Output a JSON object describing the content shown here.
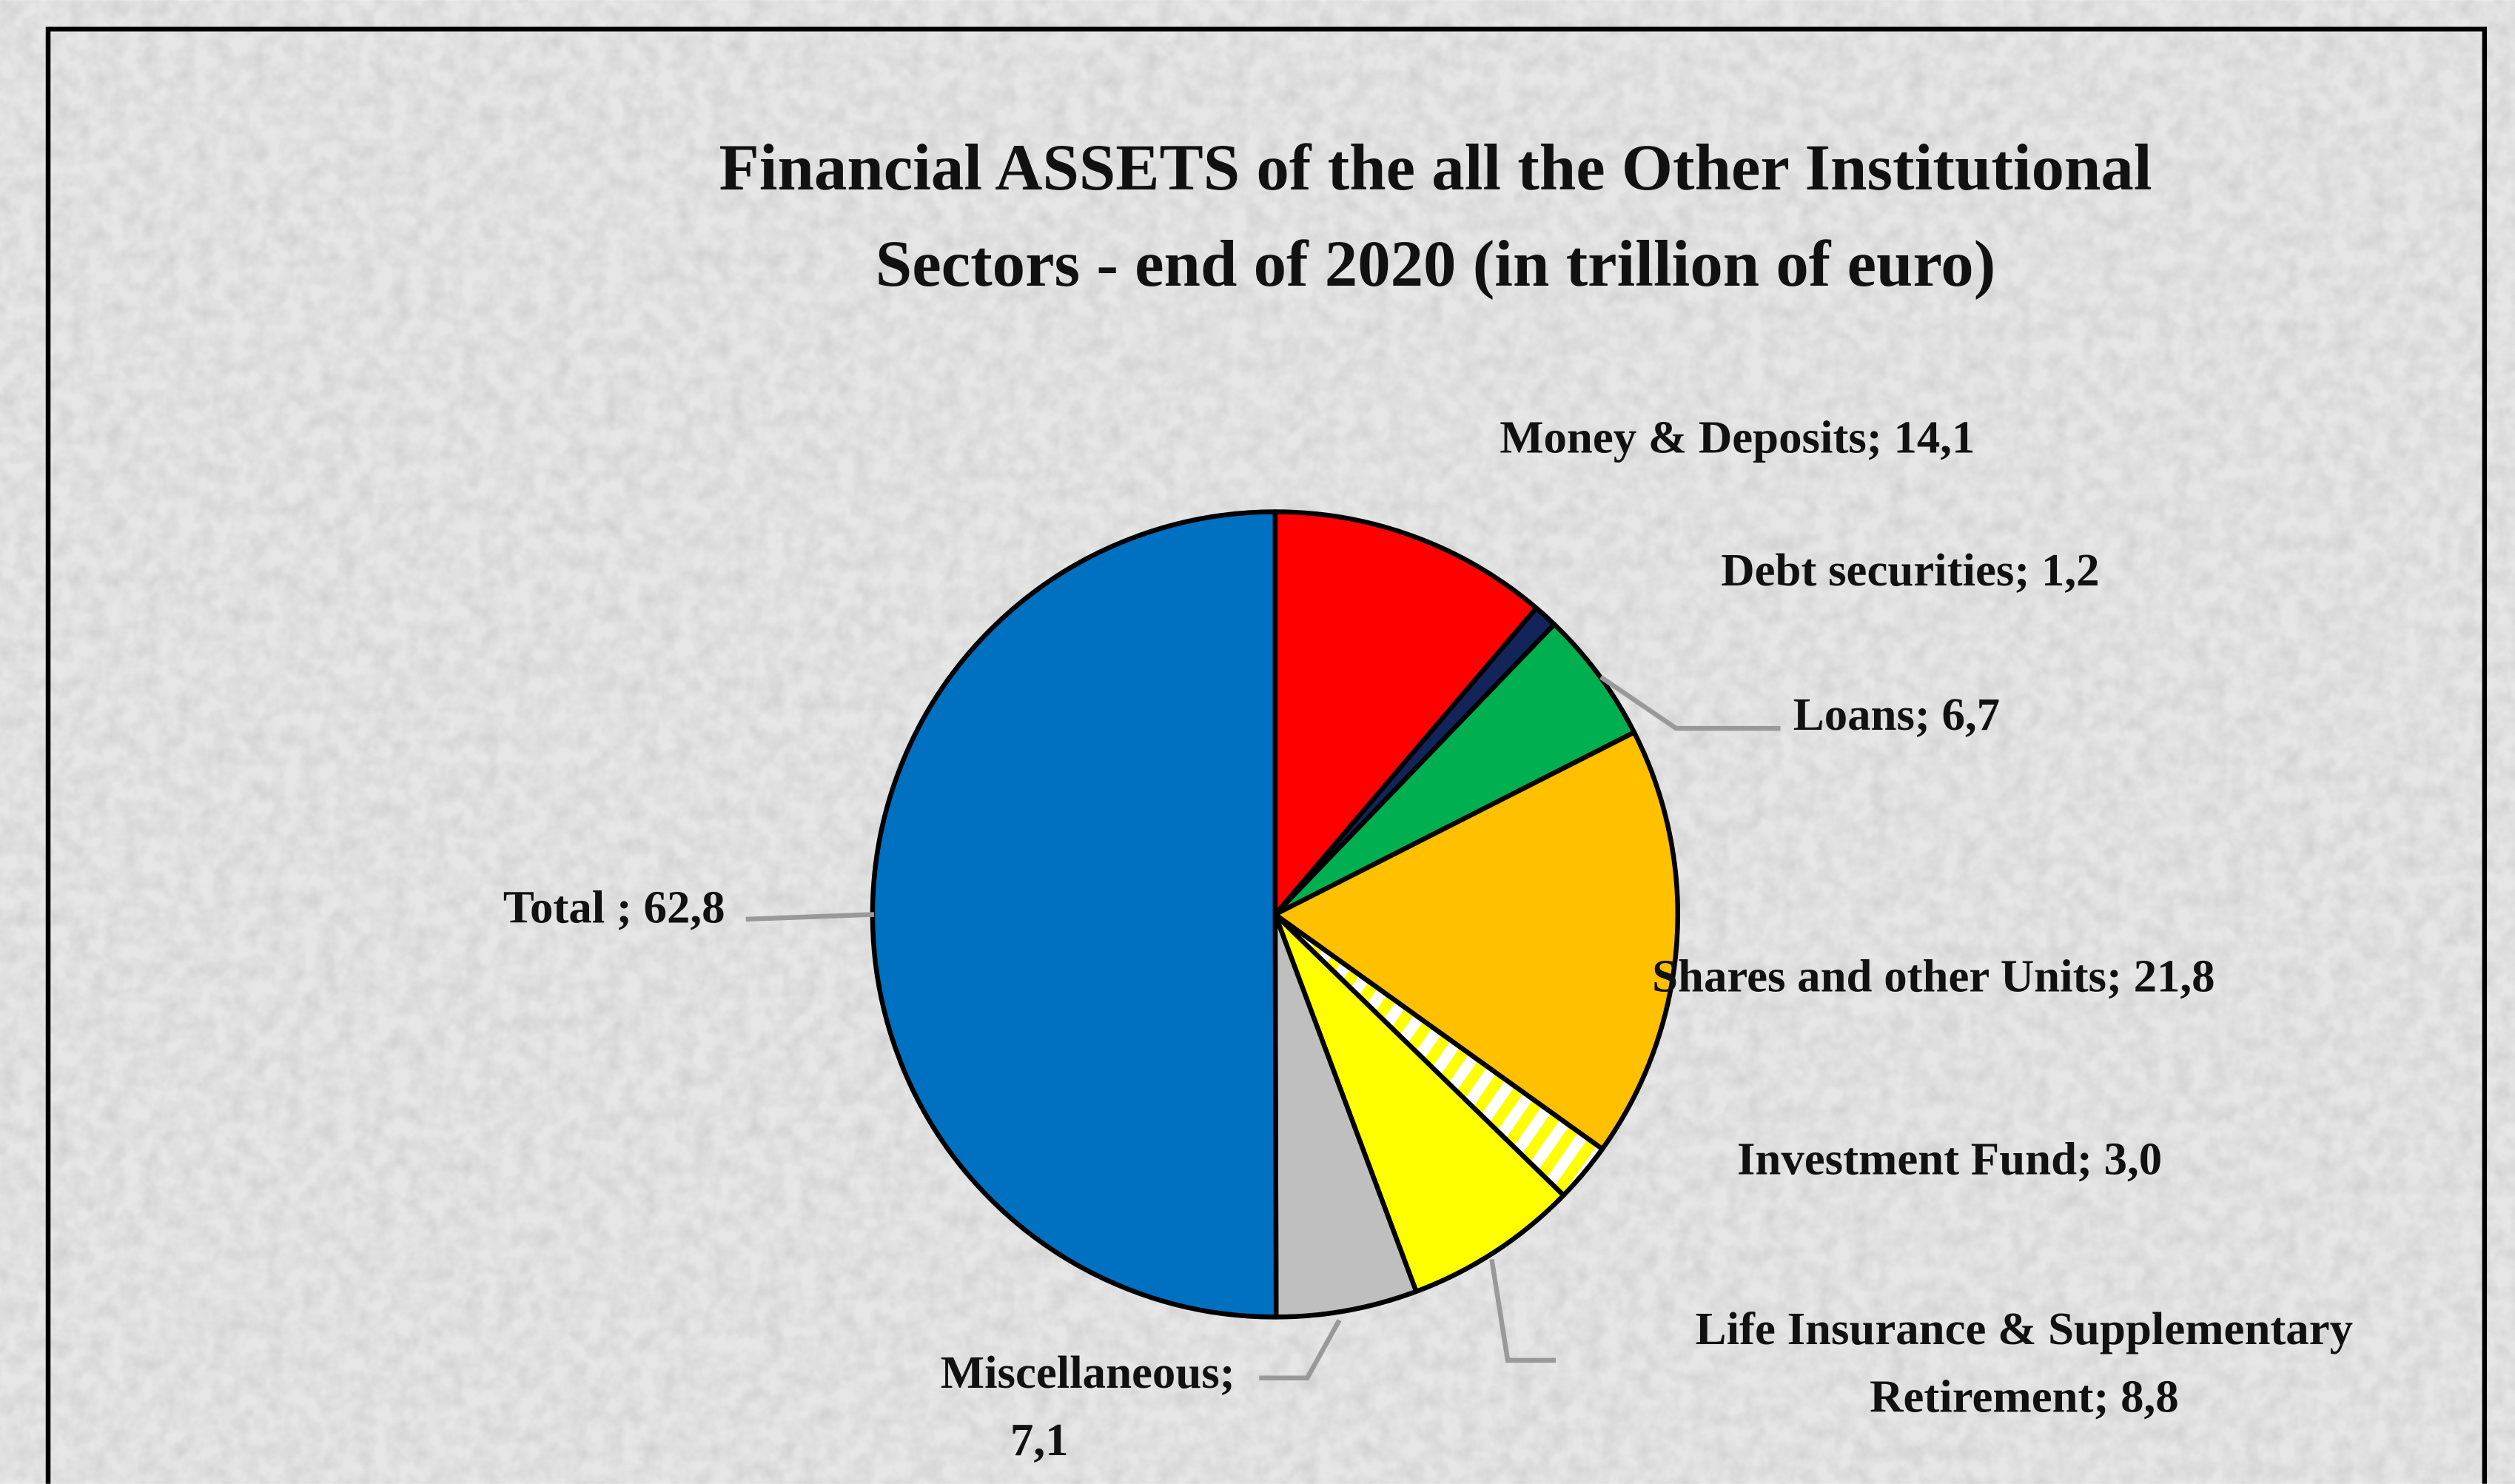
{
  "chart_data": {
    "type": "pie",
    "title": [
      "Financial ASSETS of the all the Other Institutional",
      "Sectors - end of 2020 (in trillion of euro)"
    ],
    "values": [
      14.1,
      1.2,
      6.7,
      21.8,
      3.0,
      8.8,
      7.1,
      62.8
    ],
    "value_labels": [
      [
        "Money & Deposits; 14,1"
      ],
      [
        "Debt securities; 1,2"
      ],
      [
        "Loans; 6,7"
      ],
      [
        "Shares and other Units; 21,8"
      ],
      [
        "Investment Fund; 3,0"
      ],
      [
        "Life Insurance & Supplementary",
        "Retirement; 8,8"
      ],
      [
        "Miscellaneous;",
        "7,1"
      ],
      [
        "Total ; 62,8"
      ]
    ],
    "colors": [
      "#ff0000",
      "#12245a",
      "#00b050",
      "#ffc000",
      "#ffff00",
      "#ffff00",
      "#bfbfbf",
      "#0070c0"
    ],
    "hatched": [
      4
    ]
  }
}
